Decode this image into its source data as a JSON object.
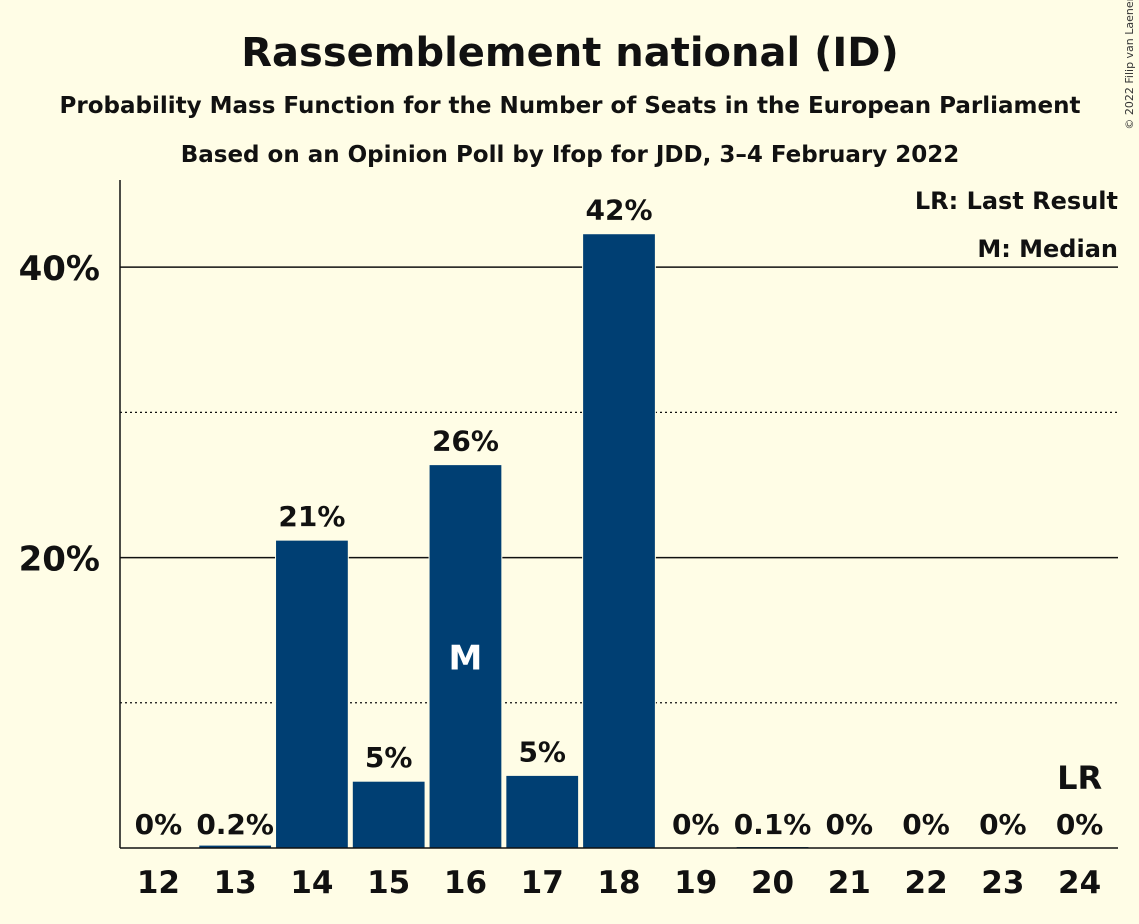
{
  "chart_data": {
    "type": "bar",
    "title": "Rassemblement national (ID)",
    "subtitle": "Probability Mass Function for the Number of Seats in the European Parliament",
    "subtitle2": "Based on an Opinion Poll by Ifop for JDD, 3–4 February 2022",
    "copyright": "© 2022 Filip van Laenen",
    "categories": [
      "12",
      "13",
      "14",
      "15",
      "16",
      "17",
      "18",
      "19",
      "20",
      "21",
      "22",
      "23",
      "24"
    ],
    "values": [
      0,
      0.2,
      21.2,
      4.6,
      26.4,
      5.0,
      42.3,
      0,
      0.1,
      0,
      0,
      0,
      0
    ],
    "data_labels": [
      "0%",
      "0.2%",
      "21%",
      "5%",
      "26%",
      "5%",
      "42%",
      "0%",
      "0.1%",
      "0%",
      "0%",
      "0%",
      "0%"
    ],
    "y_ticks": [
      {
        "value": 20,
        "label": "20%"
      },
      {
        "value": 40,
        "label": "40%"
      }
    ],
    "minor_gridlines": [
      10,
      30
    ],
    "ylim": [
      0,
      46
    ],
    "median_category": "16",
    "median_marker": "M",
    "last_result_category": "24",
    "last_result_marker": "LR",
    "legend": [
      "LR: Last Result",
      "M: Median"
    ],
    "legend_position": "top-right",
    "bar_color": "#003F73",
    "background_color": "#FFFDE6"
  }
}
